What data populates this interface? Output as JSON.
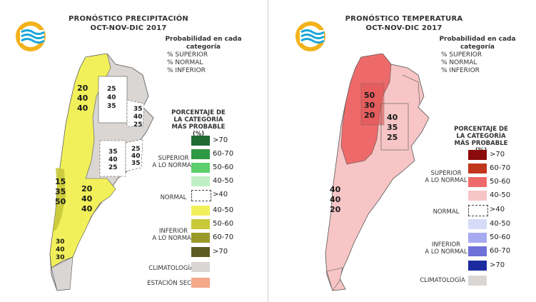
{
  "left": {
    "title_line1": "PRONÓSTICO PRECIPITACIÓN",
    "title_line2": "OCT-NOV-DIC 2017",
    "prob_header_line1": "Probabilidad en cada",
    "prob_header_line2": "categoría",
    "prob_superior": "% SUPERIOR",
    "prob_normal": "% NORMAL",
    "prob_inferior": "% INFERIOR",
    "pct_title_line1": "PORCENTAJE DE",
    "pct_title_line2": "LA CATEGORÍA",
    "pct_title_line3": "MÁS PROBABLE (%)",
    "cat_superior_line1": "SUPERIOR",
    "cat_superior_line2": "A LO NORMAL",
    "cat_normal": "NORMAL",
    "cat_inferior_line1": "INFERIOR",
    "cat_inferior_line2": "A LO NORMAL",
    "cat_climatologia": "CLIMATOLOGÍA",
    "cat_estacion_seca": "ESTACIÓN SECA",
    "legend": [
      {
        "label": ">70",
        "color": "#1f6b32"
      },
      {
        "label": "60-70",
        "color": "#2e9a44"
      },
      {
        "label": "50-60",
        "color": "#5ccf6e"
      },
      {
        "label": "40-50",
        "color": "#bff0c3"
      },
      {
        "label": ">40",
        "color": "#ffffff"
      },
      {
        "label": "40-50",
        "color": "#f2f05a"
      },
      {
        "label": "50-60",
        "color": "#c8c83a"
      },
      {
        "label": "60-70",
        "color": "#9a9a2a"
      },
      {
        "label": ">70",
        "color": "#5c5c22"
      },
      {
        "label": "",
        "color": "#d9d6d3"
      },
      {
        "label": "",
        "color": "#f3a98a"
      }
    ],
    "regions": {
      "nw": [
        "20",
        "40",
        "40"
      ],
      "center": [
        "25",
        "40",
        "35"
      ],
      "east": [
        "35",
        "40",
        "25"
      ],
      "centralbox": [
        "35",
        "40",
        "25"
      ],
      "rightbox": [
        "25",
        "40",
        "35"
      ],
      "patagonia_w": [
        "15",
        "35",
        "50"
      ],
      "patagonia_c": [
        "20",
        "40",
        "40"
      ],
      "south": [
        "30",
        "40",
        "30"
      ]
    }
  },
  "right": {
    "title_line1": "PRONÓSTICO TEMPERATURA",
    "title_line2": "OCT-NOV-DIC 2017",
    "prob_header_line1": "Probabilidad en cada",
    "prob_header_line2": "categoría",
    "prob_superior": "% SUPERIOR",
    "prob_normal": "% NORMAL",
    "prob_inferior": "% INFERIOR",
    "pct_title_line1": "PORCENTAJE DE",
    "pct_title_line2": "LA CATEGORÍA",
    "pct_title_line3": "MÁS PROBABLE (%)",
    "cat_superior_line1": "SUPERIOR",
    "cat_superior_line2": "A LO NORMAL",
    "cat_normal": "NORMAL",
    "cat_inferior_line1": "INFERIOR",
    "cat_inferior_line2": "A LO NORMAL",
    "cat_climatologia": "CLIMATOLOGÍA",
    "legend": [
      {
        "label": ">70",
        "color": "#8b0a0a"
      },
      {
        "label": "60-70",
        "color": "#c0361c"
      },
      {
        "label": "50-60",
        "color": "#ee6a6a"
      },
      {
        "label": "40-50",
        "color": "#f7c5c5"
      },
      {
        "label": ">40",
        "color": "#ffffff"
      },
      {
        "label": "40-50",
        "color": "#d6dcf7"
      },
      {
        "label": "50-60",
        "color": "#a6aaf0"
      },
      {
        "label": "60-70",
        "color": "#6f70d8"
      },
      {
        "label": ">70",
        "color": "#1c2aa0"
      },
      {
        "label": "",
        "color": "#d9d6d3"
      }
    ],
    "regions": {
      "nw": [
        "50",
        "30",
        "20"
      ],
      "center": [
        "40",
        "35",
        "25"
      ],
      "patagonia": [
        "40",
        "40",
        "20"
      ]
    }
  }
}
